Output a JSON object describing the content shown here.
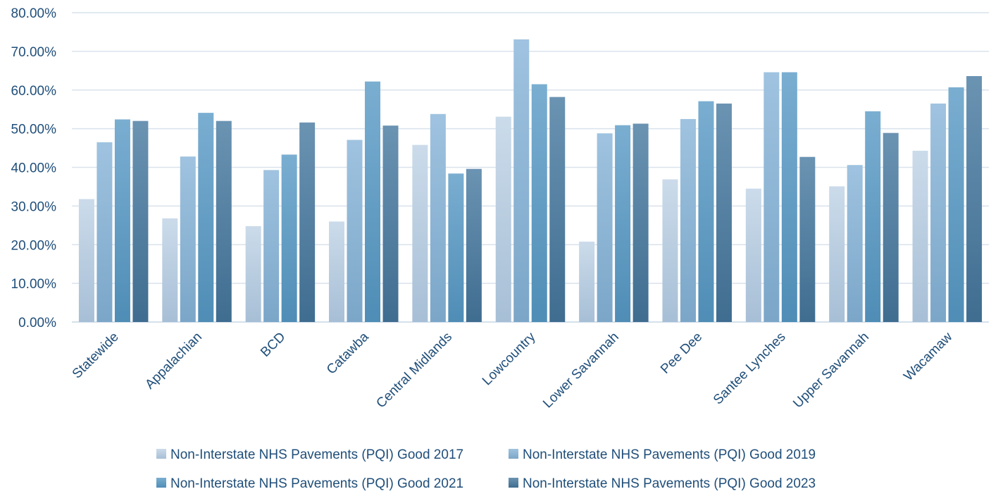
{
  "chart_data": {
    "type": "bar",
    "title": "",
    "xlabel": "",
    "ylabel": "",
    "ylim": [
      0,
      0.8
    ],
    "yticks": [
      0,
      0.1,
      0.2,
      0.3,
      0.4,
      0.5,
      0.6,
      0.7,
      0.8
    ],
    "ytick_labels": [
      "0.00%",
      "10.00%",
      "20.00%",
      "30.00%",
      "40.00%",
      "50.00%",
      "60.00%",
      "70.00%",
      "80.00%"
    ],
    "grid": true,
    "legend_position": "bottom",
    "categories": [
      "Statewide",
      "Appalachian",
      "BCD",
      "Catawba",
      "Central Midlands",
      "Lowcountry",
      "Lower Savannah",
      "Pee Dee",
      "Santee Lynches",
      "Upper Savannah",
      "Wacamaw"
    ],
    "series": [
      {
        "name": "Non-Interstate NHS Pavements (PQI) Good 2017",
        "color_top": "#cbdbea",
        "color_bottom": "#a7bfd6",
        "values": [
          0.318,
          0.268,
          0.248,
          0.26,
          0.458,
          0.531,
          0.208,
          0.369,
          0.345,
          0.351,
          0.443
        ]
      },
      {
        "name": "Non-Interstate NHS Pavements (PQI) Good 2019",
        "color_top": "#9fc3e0",
        "color_bottom": "#7ba6c8",
        "values": [
          0.465,
          0.428,
          0.393,
          0.471,
          0.538,
          0.731,
          0.488,
          0.525,
          0.646,
          0.406,
          0.565
        ]
      },
      {
        "name": "Non-Interstate NHS Pavements (PQI) Good 2021",
        "color_top": "#7aaed1",
        "color_bottom": "#4f8db6",
        "values": [
          0.524,
          0.541,
          0.433,
          0.622,
          0.384,
          0.615,
          0.509,
          0.571,
          0.646,
          0.545,
          0.607
        ]
      },
      {
        "name": "Non-Interstate NHS Pavements (PQI) Good 2023",
        "color_top": "#6b93b2",
        "color_bottom": "#3f6d90",
        "values": [
          0.52,
          0.52,
          0.516,
          0.508,
          0.396,
          0.582,
          0.513,
          0.565,
          0.427,
          0.489,
          0.636
        ]
      }
    ]
  }
}
